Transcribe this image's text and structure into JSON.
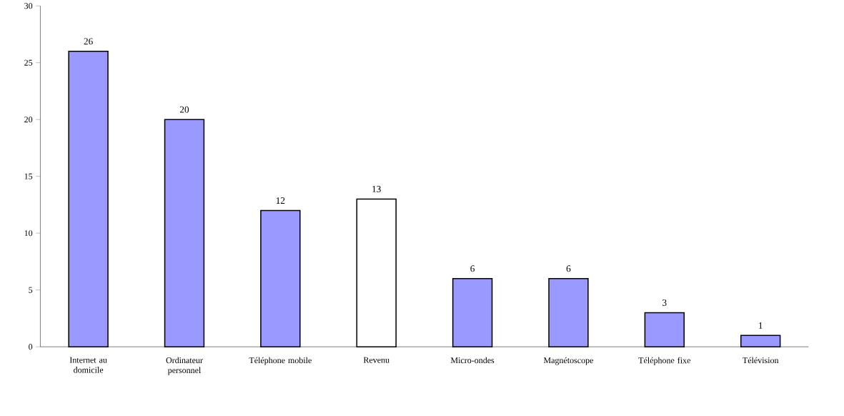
{
  "chart_data": {
    "type": "bar",
    "categories": [
      "Internet au domicile",
      "Ordinateur personnel",
      "Téléphone mobile",
      "Revenu",
      "Micro-ondes",
      "Magnétoscope",
      "Téléphone fixe",
      "Télévision"
    ],
    "values": [
      26,
      20,
      12,
      13,
      6,
      6,
      3,
      1
    ],
    "colors": [
      "#9999ff",
      "#9999ff",
      "#9999ff",
      "#ffffff",
      "#9999ff",
      "#9999ff",
      "#9999ff",
      "#9999ff"
    ],
    "ylim": [
      0,
      30
    ],
    "yticks": [
      0,
      5,
      10,
      15,
      20,
      25,
      30
    ],
    "data_labels": true,
    "grid": false
  }
}
